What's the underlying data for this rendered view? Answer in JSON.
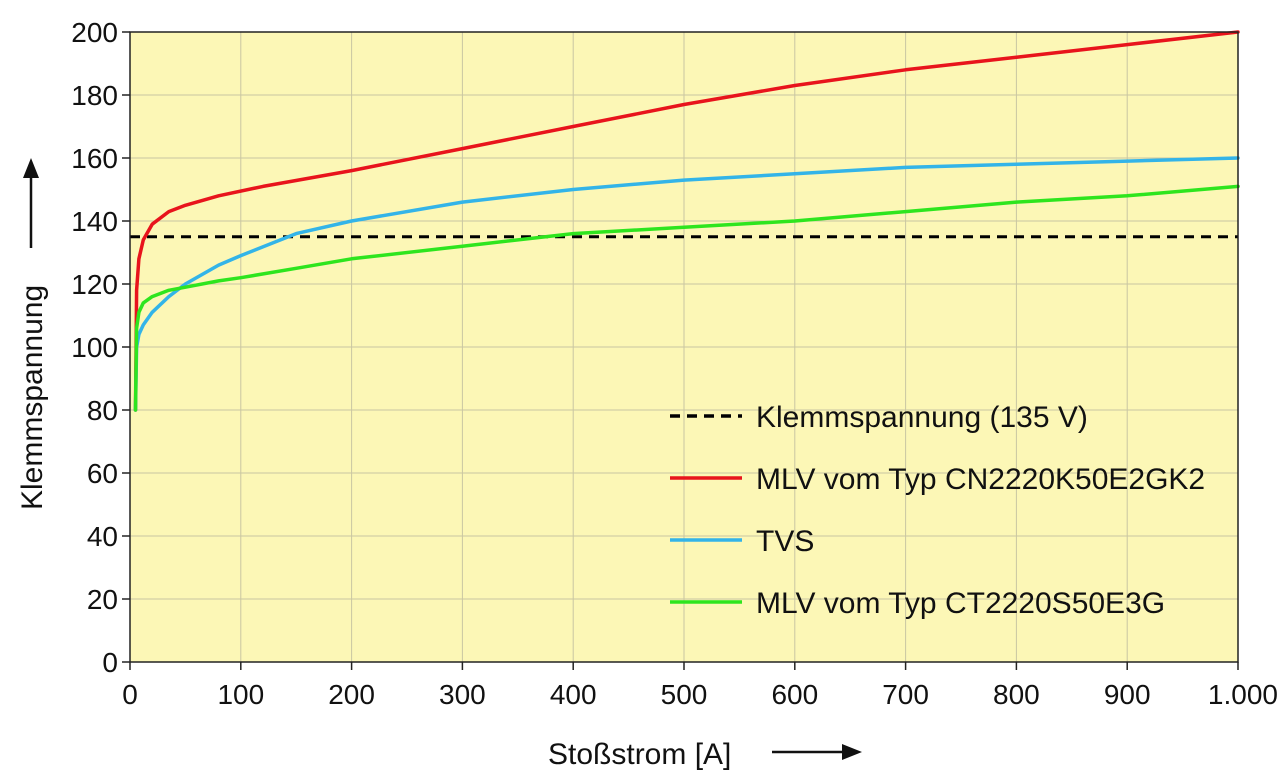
{
  "chart_data": {
    "type": "line",
    "title": "",
    "xlabel": "Stoßstrom [A]",
    "ylabel": "Klemmspannung",
    "xlim": [
      0,
      1000
    ],
    "ylim": [
      0,
      200
    ],
    "x_ticks": [
      0,
      100,
      200,
      300,
      400,
      500,
      600,
      700,
      800,
      900,
      1000
    ],
    "x_tick_labels": [
      "0",
      "100",
      "200",
      "300",
      "400",
      "500",
      "600",
      "700",
      "800",
      "900",
      "1.000"
    ],
    "y_ticks": [
      0,
      20,
      40,
      60,
      80,
      100,
      120,
      140,
      160,
      180,
      200
    ],
    "y_tick_labels": [
      "0",
      "20",
      "40",
      "60",
      "80",
      "100",
      "120",
      "140",
      "160",
      "180",
      "200"
    ],
    "background_color": "#fcf7b6",
    "grid": true,
    "legend_position": "bottom-right",
    "reference_line": {
      "name": "Klemmspannung (135 V)",
      "y": 135,
      "color": "#000000",
      "style": "dashed"
    },
    "series": [
      {
        "name": "MLV vom Typ CN2220K50E2GK2",
        "color": "#e8141c",
        "x": [
          5,
          6,
          8,
          12,
          20,
          35,
          50,
          80,
          120,
          200,
          300,
          400,
          500,
          600,
          700,
          800,
          900,
          1000
        ],
        "y": [
          80,
          118,
          128,
          134,
          139,
          143,
          145,
          148,
          151,
          156,
          163,
          170,
          177,
          183,
          188,
          192,
          196,
          200
        ]
      },
      {
        "name": "TVS",
        "color": "#33b4e8",
        "x": [
          5,
          6,
          8,
          12,
          20,
          35,
          50,
          80,
          100,
          150,
          200,
          300,
          400,
          500,
          600,
          700,
          800,
          900,
          1000
        ],
        "y": [
          80,
          100,
          104,
          107,
          111,
          116,
          120,
          126,
          129,
          136,
          140,
          146,
          150,
          153,
          155,
          157,
          158,
          159,
          160
        ]
      },
      {
        "name": "MLV vom Typ CT2220S50E3G",
        "color": "#2ee51e",
        "x": [
          5,
          6,
          8,
          12,
          20,
          35,
          50,
          80,
          100,
          150,
          200,
          300,
          400,
          500,
          600,
          700,
          800,
          900,
          1000
        ],
        "y": [
          80,
          106,
          111,
          114,
          116,
          118,
          119,
          121,
          122,
          125,
          128,
          132,
          136,
          138,
          140,
          143,
          146,
          148,
          151
        ]
      }
    ]
  }
}
